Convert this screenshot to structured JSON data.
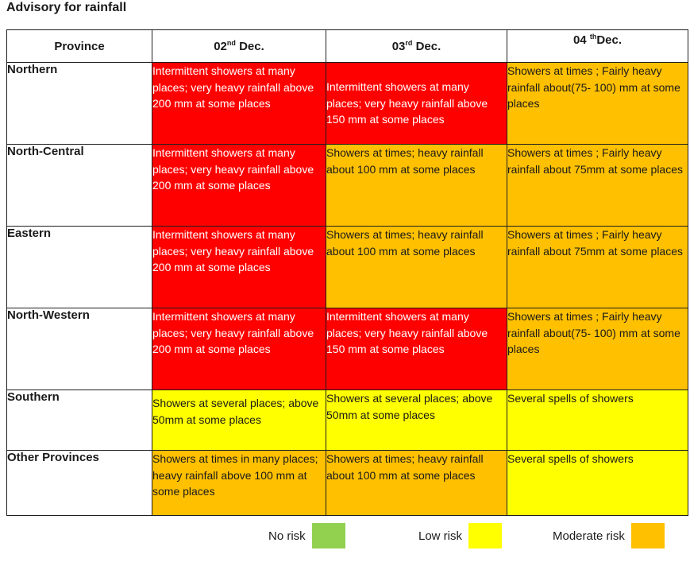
{
  "title": "Advisory for rainfall",
  "headers": {
    "province": "Province",
    "d1": {
      "num": "02",
      "sup": "nd",
      "rest": " Dec."
    },
    "d2": {
      "num": "03",
      "sup": "rd",
      "rest": " Dec."
    },
    "d3": {
      "num": "04 ",
      "sup": "th",
      "rest": "Dec."
    }
  },
  "colors": {
    "high": "#ff0000",
    "moderate": "#ffc000",
    "low": "#ffff00",
    "no_risk": "#92d050"
  },
  "rows": [
    {
      "province": "Northern",
      "d1": {
        "text": "Intermittent showers at many places; very heavy rainfall above 200 mm at some places",
        "level": "high"
      },
      "d2": {
        "text": "Intermittent showers at many places; very heavy rainfall above 150 mm at some places",
        "level": "high"
      },
      "d3": {
        "text": "Showers at times ; Fairly heavy rainfall about(75- 100) mm at some places",
        "level": "moderate"
      }
    },
    {
      "province": "North-Central",
      "d1": {
        "text": "Intermittent showers at many places; very heavy rainfall above 200 mm at some places",
        "level": "high"
      },
      "d2": {
        "text": "Showers at times;  heavy rainfall about 100 mm at some places",
        "level": "moderate"
      },
      "d3": {
        "text": "Showers at times ; Fairly heavy rainfall about 75mm at some places",
        "level": "moderate"
      }
    },
    {
      "province": "Eastern",
      "d1": {
        "text": "Intermittent showers at many places; very heavy rainfall above 200 mm at some places",
        "level": "high"
      },
      "d2": {
        "text": "Showers at times;  heavy rainfall about 100 mm at some places",
        "level": "moderate"
      },
      "d3": {
        "text": "Showers at times ; Fairly heavy rainfall about 75mm at some places",
        "level": "moderate"
      }
    },
    {
      "province": "North-Western",
      "d1": {
        "text": "Intermittent showers at many places; very heavy rainfall above 200 mm at some places",
        "level": "high"
      },
      "d2": {
        "text": "Intermittent showers at many places; very heavy rainfall above 150 mm at some places",
        "level": "high"
      },
      "d3": {
        "text": "Showers at times ; Fairly heavy rainfall about(75- 100) mm at some places",
        "level": "moderate"
      }
    },
    {
      "province": "Southern",
      "d1": {
        "text": "Showers at several places; above 50mm at some places",
        "level": "low"
      },
      "d2": {
        "text": "Showers at several places; above 50mm at some places",
        "level": "low"
      },
      "d3": {
        "text": "Several spells of showers",
        "level": "low"
      }
    },
    {
      "province": "Other Provinces",
      "d1": {
        "text": "Showers at times in many places;  heavy rainfall above 100 mm at some places",
        "level": "moderate"
      },
      "d2": {
        "text": "Showers at times;  heavy rainfall about 100 mm at some places",
        "level": "moderate"
      },
      "d3": {
        "text": "Several spells of showers",
        "level": "low"
      }
    }
  ],
  "legend": {
    "no_risk": "No risk",
    "low_risk": "Low risk",
    "moderate_risk": "Moderate risk"
  }
}
